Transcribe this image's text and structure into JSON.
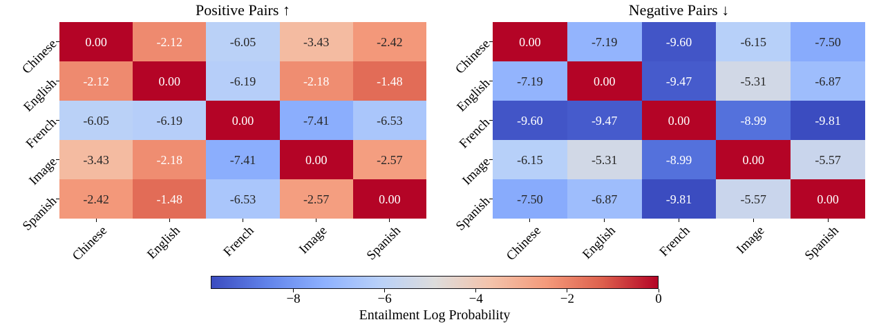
{
  "figure": {
    "background": "#ffffff",
    "text_color": "#000000",
    "annot_dark_color": "#262626",
    "annot_light_color": "#ffffff"
  },
  "chart_data": {
    "type": "heatmap",
    "colormap": "coolwarm",
    "colormap_stops": [
      "#3b4cc0",
      "#6183ea",
      "#8db0fe",
      "#b8d0f9",
      "#dddcdc",
      "#f4c3ab",
      "#f49a7b",
      "#dd604d",
      "#b40426"
    ],
    "vmin": -9.81,
    "vmax": 0,
    "heatmaps": [
      {
        "title": "Positive Pairs ↑",
        "rows": [
          "Chinese",
          "English",
          "French",
          "Image",
          "Spanish"
        ],
        "columns": [
          "Chinese",
          "English",
          "French",
          "Image",
          "Spanish"
        ],
        "values": [
          [
            0.0,
            -2.12,
            -6.05,
            -3.43,
            -2.42
          ],
          [
            -2.12,
            0.0,
            -6.19,
            -2.18,
            -1.48
          ],
          [
            -6.05,
            -6.19,
            0.0,
            -7.41,
            -6.53
          ],
          [
            -3.43,
            -2.18,
            -7.41,
            0.0,
            -2.57
          ],
          [
            -2.42,
            -1.48,
            -6.53,
            -2.57,
            0.0
          ]
        ]
      },
      {
        "title": "Negative Pairs ↓",
        "rows": [
          "Chinese",
          "English",
          "French",
          "Image",
          "Spanish"
        ],
        "columns": [
          "Chinese",
          "English",
          "French",
          "Image",
          "Spanish"
        ],
        "values": [
          [
            0.0,
            -7.19,
            -9.6,
            -6.15,
            -7.5
          ],
          [
            -7.19,
            0.0,
            -9.47,
            -5.31,
            -6.87
          ],
          [
            -9.6,
            -9.47,
            0.0,
            -8.99,
            -9.81
          ],
          [
            -6.15,
            -5.31,
            -8.99,
            0.0,
            -5.57
          ],
          [
            -7.5,
            -6.87,
            -9.81,
            -5.57,
            0.0
          ]
        ]
      }
    ],
    "colorbar": {
      "label": "Entailment Log Probability",
      "ticks": [
        {
          "value": -8,
          "label": "−8"
        },
        {
          "value": -6,
          "label": "−6"
        },
        {
          "value": -4,
          "label": "−4"
        },
        {
          "value": -2,
          "label": "−2"
        },
        {
          "value": 0,
          "label": "0"
        }
      ]
    }
  }
}
